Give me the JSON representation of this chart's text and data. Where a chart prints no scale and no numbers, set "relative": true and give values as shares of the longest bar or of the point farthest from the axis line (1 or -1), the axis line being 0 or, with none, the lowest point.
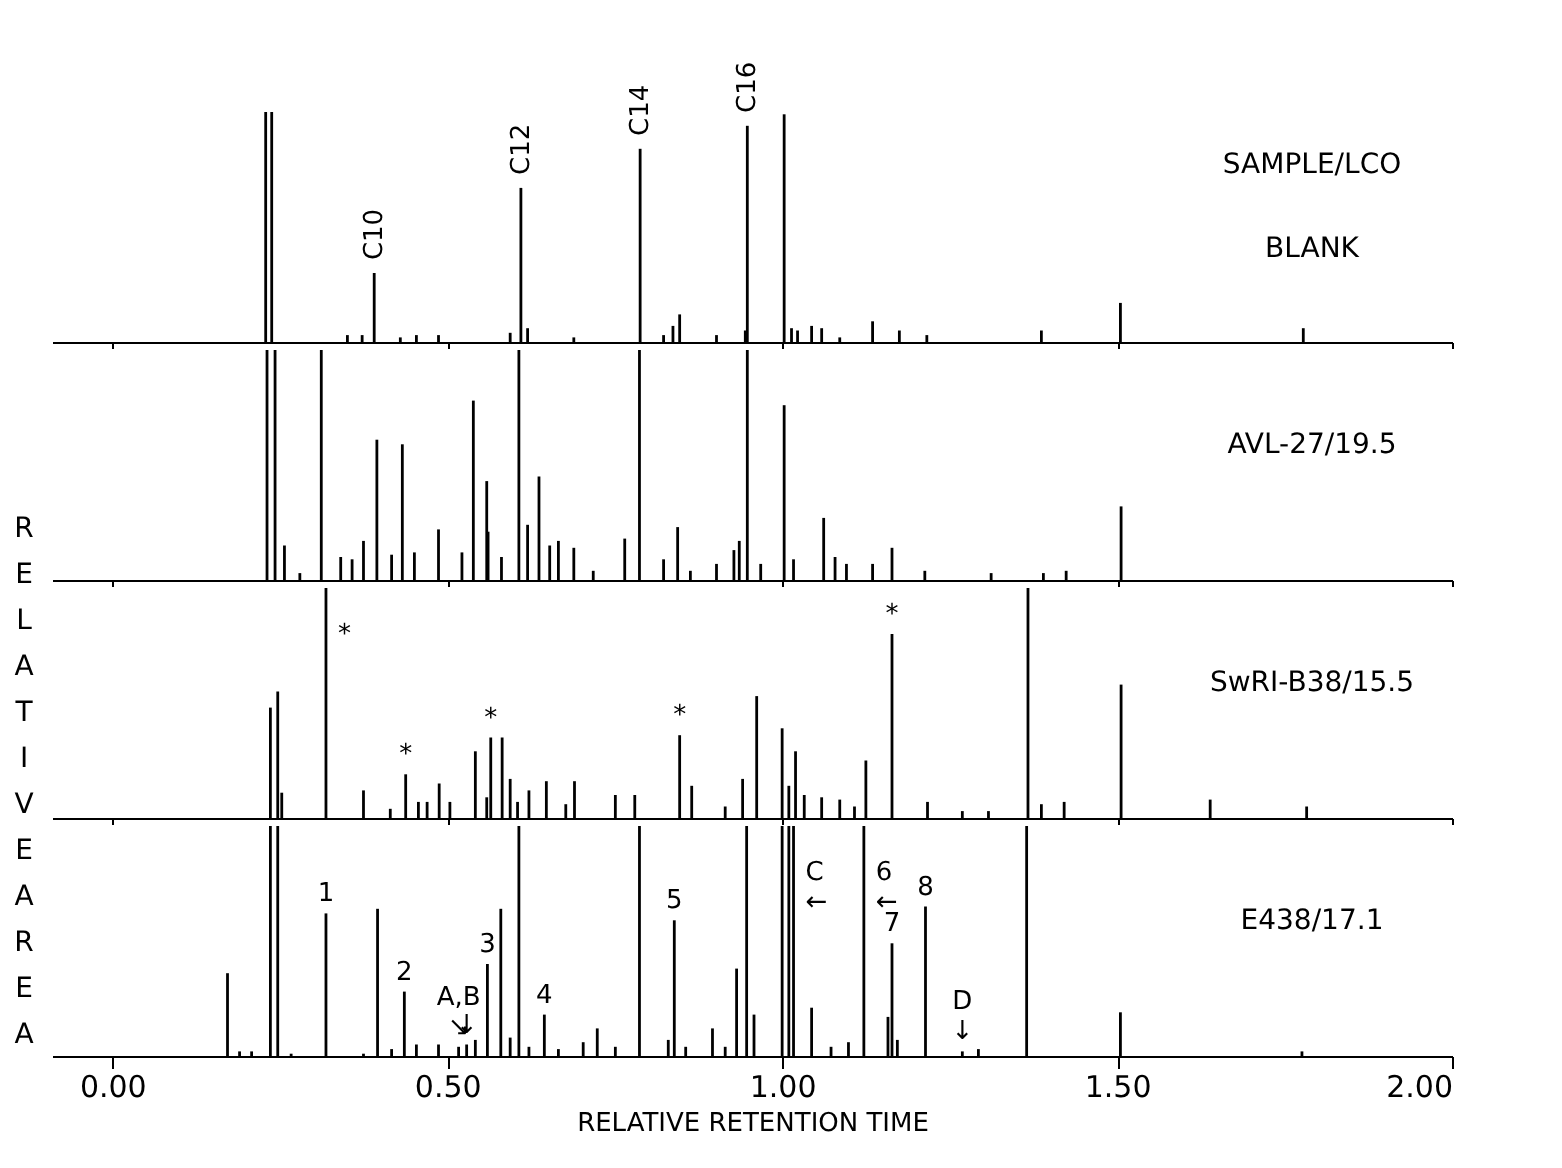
{
  "chart_data": [
    {
      "type": "bar",
      "relative": true,
      "xlim": [
        -0.09,
        2.0
      ],
      "tick_labels": false,
      "ylabel": "RELATIVE AREA",
      "grid": false,
      "xticks": [
        0,
        0.5,
        1,
        1.5,
        2
      ],
      "x": [
        0.229,
        0.238,
        0.351,
        0.373,
        0.391,
        0.43,
        0.454,
        0.487,
        0.594,
        0.61,
        0.62,
        0.689,
        0.788,
        0.823,
        0.837,
        0.847,
        0.902,
        0.945,
        0.948,
        1.003,
        1.014,
        1.023,
        1.044,
        1.059,
        1.086,
        1.135,
        1.175,
        1.216,
        1.387,
        1.505,
        1.778
      ],
      "series": [
        {
          "color": "#000000",
          "values": [
            1.0,
            1.0,
            0.03,
            0.03,
            0.3,
            0.02,
            0.03,
            0.03,
            0.04,
            0.67,
            0.06,
            0.02,
            0.84,
            0.03,
            0.07,
            0.12,
            0.03,
            0.05,
            0.94,
            0.99,
            0.06,
            0.05,
            0.07,
            0.06,
            0.02,
            0.09,
            0.05,
            0.03,
            0.05,
            0.17,
            0.06
          ]
        }
      ],
      "annotations": [
        {
          "text": "C10",
          "x": 0.391,
          "y": 0.33
        },
        {
          "text": "C12",
          "x": 0.61,
          "y": 0.7
        },
        {
          "text": "C14",
          "x": 0.788,
          "y": 0.87
        },
        {
          "text": "C16",
          "x": 0.948,
          "y": 0.97
        },
        "SAMPLE/LCO",
        "BLANK"
      ]
    },
    {
      "type": "bar",
      "relative": true,
      "xlim": [
        -0.09,
        2.0
      ],
      "tick_labels": false,
      "grid": false,
      "xticks": [
        0,
        0.5,
        1,
        1.5,
        2
      ],
      "x": [
        0.231,
        0.243,
        0.257,
        0.28,
        0.312,
        0.341,
        0.358,
        0.375,
        0.395,
        0.417,
        0.433,
        0.451,
        0.487,
        0.522,
        0.539,
        0.559,
        0.561,
        0.581,
        0.607,
        0.62,
        0.637,
        0.653,
        0.666,
        0.689,
        0.718,
        0.765,
        0.787,
        0.823,
        0.844,
        0.863,
        0.902,
        0.928,
        0.936,
        0.948,
        0.968,
        1.003,
        1.017,
        1.062,
        1.079,
        1.096,
        1.135,
        1.164,
        1.213,
        1.312,
        1.39,
        1.424,
        1.506
      ],
      "series": [
        {
          "color": "#000000",
          "values": [
            1.0,
            1.0,
            0.15,
            0.03,
            1.0,
            0.1,
            0.09,
            0.17,
            0.61,
            0.11,
            0.59,
            0.12,
            0.22,
            0.12,
            0.78,
            0.43,
            0.21,
            0.1,
            1.0,
            0.24,
            0.45,
            0.15,
            0.17,
            0.14,
            0.04,
            0.18,
            1.0,
            0.09,
            0.23,
            0.04,
            0.07,
            0.13,
            0.17,
            1.0,
            0.07,
            0.76,
            0.09,
            0.27,
            0.1,
            0.07,
            0.07,
            0.14,
            0.04,
            0.03,
            0.03,
            0.04,
            0.32
          ]
        }
      ],
      "annotations": [
        "AVL-27/19.5"
      ]
    },
    {
      "type": "bar",
      "relative": true,
      "xlim": [
        -0.09,
        2.0
      ],
      "tick_labels": false,
      "grid": false,
      "xticks": [
        0,
        0.5,
        1,
        1.5,
        2
      ],
      "x": [
        0.236,
        0.247,
        0.253,
        0.319,
        0.375,
        0.415,
        0.438,
        0.457,
        0.47,
        0.488,
        0.504,
        0.542,
        0.559,
        0.565,
        0.582,
        0.594,
        0.605,
        0.622,
        0.648,
        0.677,
        0.69,
        0.751,
        0.78,
        0.847,
        0.865,
        0.915,
        0.941,
        0.962,
        1.0,
        1.01,
        1.02,
        1.033,
        1.059,
        1.086,
        1.108,
        1.125,
        1.164,
        1.217,
        1.269,
        1.308,
        1.367,
        1.387,
        1.421,
        1.506,
        1.639,
        1.783
      ],
      "series": [
        {
          "color": "#000000",
          "values": [
            0.48,
            0.55,
            0.11,
            1.0,
            0.12,
            0.04,
            0.19,
            0.07,
            0.07,
            0.15,
            0.07,
            0.29,
            0.09,
            0.35,
            0.35,
            0.17,
            0.07,
            0.12,
            0.16,
            0.06,
            0.16,
            0.1,
            0.1,
            0.36,
            0.14,
            0.05,
            0.17,
            0.53,
            0.39,
            0.14,
            0.29,
            0.1,
            0.09,
            0.08,
            0.05,
            0.25,
            0.8,
            0.07,
            0.03,
            0.03,
            1.0,
            0.06,
            0.07,
            0.58,
            0.08,
            0.05
          ]
        }
      ],
      "annotations": [
        {
          "text": "*",
          "x": 0.319
        },
        {
          "text": "*",
          "x": 0.438,
          "y": 0.19
        },
        {
          "text": "*",
          "x": 0.565,
          "y": 0.35
        },
        {
          "text": "*",
          "x": 0.847,
          "y": 0.36
        },
        {
          "text": "*",
          "x": 1.164,
          "y": 0.8
        },
        "SwRI-B38/15.5"
      ]
    },
    {
      "type": "bar",
      "relative": true,
      "xlim": [
        -0.09,
        2.0
      ],
      "xlabel": "RELATIVE RETENTION TIME",
      "grid": false,
      "xticks": [
        {
          "value": 0,
          "label": "0.00"
        },
        {
          "value": 0.5,
          "label": "0.50"
        },
        {
          "value": 1,
          "label": "1.00"
        },
        {
          "value": 1.5,
          "label": "1.50"
        },
        {
          "value": 2,
          "label": "2.00"
        }
      ],
      "x": [
        0.172,
        0.19,
        0.208,
        0.236,
        0.247,
        0.267,
        0.319,
        0.375,
        0.396,
        0.417,
        0.436,
        0.454,
        0.487,
        0.517,
        0.529,
        0.542,
        0.56,
        0.58,
        0.594,
        0.607,
        0.622,
        0.645,
        0.666,
        0.703,
        0.724,
        0.751,
        0.787,
        0.83,
        0.839,
        0.856,
        0.896,
        0.915,
        0.932,
        0.947,
        0.958,
        1.0,
        1.01,
        1.017,
        1.044,
        1.073,
        1.099,
        1.122,
        1.158,
        1.164,
        1.172,
        1.214,
        1.269,
        1.293,
        1.365,
        1.505,
        1.776
      ],
      "series": [
        {
          "color": "#000000",
          "values": [
            0.36,
            0.02,
            0.02,
            1.0,
            1.0,
            0.01,
            0.62,
            0.01,
            0.64,
            0.03,
            0.28,
            0.05,
            0.05,
            0.04,
            0.05,
            0.07,
            0.4,
            0.64,
            0.08,
            1.0,
            0.04,
            0.18,
            0.03,
            0.06,
            0.12,
            0.04,
            1.0,
            0.07,
            0.59,
            0.04,
            0.12,
            0.04,
            0.38,
            1.0,
            0.18,
            1.0,
            1.0,
            1.0,
            0.21,
            0.04,
            0.06,
            1.0,
            0.17,
            0.49,
            0.07,
            0.65,
            0.02,
            0.03,
            1.0,
            0.19,
            0.02
          ]
        }
      ],
      "annotations": [
        {
          "text": "1",
          "x": 0.319,
          "y": 0.62
        },
        {
          "text": "2",
          "x": 0.436,
          "y": 0.28
        },
        {
          "text": "↘",
          "x": 0.517,
          "y": 0.04
        },
        {
          "text": "A,B",
          "x": 0.517,
          "y": 0.04
        },
        {
          "text": "↓",
          "x": 0.529,
          "y": 0.05
        },
        {
          "text": "3",
          "x": 0.56,
          "y": 0.4
        },
        {
          "text": "4",
          "x": 0.645,
          "y": 0.18
        },
        {
          "text": "5",
          "x": 0.839,
          "y": 0.59
        },
        {
          "text": "C",
          "x": 1.017
        },
        {
          "text": "←",
          "x": 1.017
        },
        {
          "text": "6",
          "x": 1.122
        },
        {
          "text": "←",
          "x": 1.122
        },
        {
          "text": "7",
          "x": 1.164,
          "y": 0.49
        },
        {
          "text": "8",
          "x": 1.214,
          "y": 0.65
        },
        {
          "text": "↓",
          "x": 1.269,
          "y": 0.02
        },
        {
          "text": "D",
          "x": 1.269,
          "y": 0.02
        },
        "E438/17.1"
      ]
    }
  ]
}
